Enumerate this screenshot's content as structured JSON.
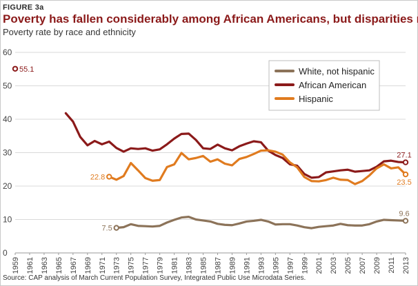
{
  "figure_label": "FIGURE 3a",
  "chart_data": {
    "type": "line",
    "title": "Poverty has fallen considerably among African Americans, but disparities remain",
    "subtitle": "Poverty rate by race and ethnicity",
    "xlabel": "",
    "ylabel": "",
    "xlim": [
      1959,
      2013
    ],
    "ylim": [
      0,
      60
    ],
    "yticks": [
      0,
      10,
      20,
      30,
      40,
      50,
      60
    ],
    "xticks": [
      "1959",
      "1961",
      "1963",
      "1965",
      "1967",
      "1969",
      "1971",
      "1973",
      "1975",
      "1977",
      "1979",
      "1981",
      "1983",
      "1985",
      "1987",
      "1989",
      "1991",
      "1993",
      "1995",
      "1997",
      "1999",
      "2001",
      "2003",
      "2005",
      "2007",
      "2009",
      "2011",
      "2013"
    ],
    "grid": true,
    "legend": "top-right",
    "series": [
      {
        "name": "White, not hispanic",
        "color": "#8c7359",
        "x": [
          1973,
          1974,
          1975,
          1976,
          1977,
          1978,
          1979,
          1980,
          1981,
          1982,
          1983,
          1984,
          1985,
          1986,
          1987,
          1988,
          1989,
          1990,
          1991,
          1992,
          1993,
          1994,
          1995,
          1996,
          1997,
          1998,
          1999,
          2000,
          2001,
          2002,
          2003,
          2004,
          2005,
          2006,
          2007,
          2008,
          2009,
          2010,
          2011,
          2012,
          2013
        ],
        "values": [
          7.5,
          7.7,
          8.6,
          8.1,
          8.0,
          7.9,
          8.1,
          9.1,
          9.9,
          10.6,
          10.8,
          10.0,
          9.7,
          9.4,
          8.7,
          8.4,
          8.3,
          8.8,
          9.4,
          9.6,
          9.9,
          9.4,
          8.5,
          8.6,
          8.6,
          8.2,
          7.7,
          7.4,
          7.8,
          8.0,
          8.2,
          8.7,
          8.3,
          8.2,
          8.2,
          8.6,
          9.4,
          9.9,
          9.8,
          9.7,
          9.6
        ]
      },
      {
        "name": "African American",
        "color": "#8b1a1a",
        "x": [
          1966,
          1967,
          1968,
          1969,
          1970,
          1971,
          1972,
          1973,
          1974,
          1975,
          1976,
          1977,
          1978,
          1979,
          1980,
          1981,
          1982,
          1983,
          1984,
          1985,
          1986,
          1987,
          1988,
          1989,
          1990,
          1991,
          1992,
          1993,
          1994,
          1995,
          1996,
          1997,
          1998,
          1999,
          2000,
          2001,
          2002,
          2003,
          2004,
          2005,
          2006,
          2007,
          2008,
          2009,
          2010,
          2011,
          2012,
          2013
        ],
        "values": [
          41.8,
          39.3,
          34.7,
          32.2,
          33.5,
          32.5,
          33.3,
          31.4,
          30.3,
          31.3,
          31.1,
          31.3,
          30.6,
          31.0,
          32.5,
          34.2,
          35.6,
          35.7,
          33.8,
          31.3,
          31.1,
          32.4,
          31.3,
          30.7,
          31.9,
          32.7,
          33.4,
          33.1,
          30.6,
          29.3,
          28.4,
          26.5,
          26.1,
          23.6,
          22.5,
          22.7,
          24.1,
          24.4,
          24.7,
          24.9,
          24.3,
          24.5,
          24.7,
          25.8,
          27.4,
          27.6,
          27.2,
          27.1
        ]
      },
      {
        "name": "Hispanic",
        "color": "#e07b1f",
        "x": [
          1972,
          1973,
          1974,
          1975,
          1976,
          1977,
          1978,
          1979,
          1980,
          1981,
          1982,
          1983,
          1984,
          1985,
          1986,
          1987,
          1988,
          1989,
          1990,
          1991,
          1992,
          1993,
          1994,
          1995,
          1996,
          1997,
          1998,
          1999,
          2000,
          2001,
          2002,
          2003,
          2004,
          2005,
          2006,
          2007,
          2008,
          2009,
          2010,
          2011,
          2012,
          2013
        ],
        "values": [
          22.8,
          21.9,
          23.0,
          26.9,
          24.7,
          22.4,
          21.6,
          21.8,
          25.7,
          26.5,
          29.9,
          28.0,
          28.4,
          29.0,
          27.3,
          28.0,
          26.7,
          26.2,
          28.1,
          28.7,
          29.6,
          30.6,
          30.7,
          30.3,
          29.4,
          27.1,
          25.6,
          22.7,
          21.5,
          21.4,
          21.8,
          22.5,
          21.9,
          21.8,
          20.6,
          21.5,
          23.2,
          25.3,
          26.5,
          25.3,
          25.6,
          23.5
        ]
      },
      {
        "name": "African American (1959)",
        "color": "#8b1a1a",
        "x": [
          1959
        ],
        "values": [
          55.1
        ]
      }
    ],
    "annotations": [
      {
        "text": "55.1",
        "series": "African American (1959)",
        "point": "first",
        "side": "right"
      },
      {
        "text": "22.8",
        "series": "Hispanic",
        "point": "first",
        "side": "left"
      },
      {
        "text": "7.5",
        "series": "White, not hispanic",
        "point": "first",
        "side": "left"
      },
      {
        "text": "27.1",
        "series": "African American",
        "point": "last",
        "side": "above"
      },
      {
        "text": "23.5",
        "series": "Hispanic",
        "point": "last",
        "side": "below"
      },
      {
        "text": "9.6",
        "series": "White, not hispanic",
        "point": "last",
        "side": "above"
      }
    ],
    "source": "Source: CAP analysis of March Current Population Survey, Integrated Public Use Microdata Series."
  }
}
